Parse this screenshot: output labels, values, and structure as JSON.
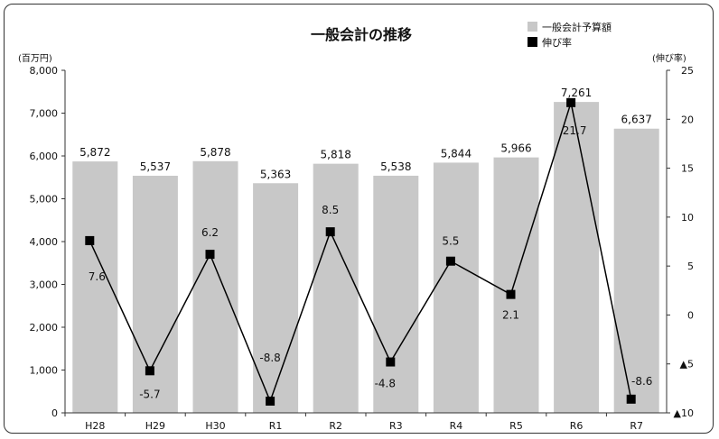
{
  "chart_data": {
    "type": "bar+line",
    "title": "一般会計の推移",
    "left_axis_unit": "(百万円)",
    "right_axis_unit": "(伸び率)",
    "categories": [
      "H28",
      "H29",
      "H30",
      "R1",
      "R2",
      "R3",
      "R4",
      "R5",
      "R6",
      "R7"
    ],
    "bar_series": {
      "name": "一般会計予算額",
      "values": [
        5872,
        5537,
        5878,
        5363,
        5818,
        5538,
        5844,
        5966,
        7261,
        6637
      ],
      "labels": [
        "5,872",
        "5,537",
        "5,878",
        "5,363",
        "5,818",
        "5,538",
        "5,844",
        "5,966",
        "7,261",
        "6,637"
      ],
      "color": "#c8c8c8"
    },
    "line_series": {
      "name": "伸び率",
      "values": [
        7.6,
        -5.7,
        6.2,
        -8.8,
        8.5,
        -4.8,
        5.5,
        2.1,
        21.7,
        -8.6
      ],
      "labels": [
        "7.6",
        "-5.7",
        "6.2",
        "-8.8",
        "8.5",
        "-4.8",
        "5.5",
        "2.1",
        "21.7",
        "-8.6"
      ],
      "color": "#000000"
    },
    "left_axis": {
      "range": [
        0,
        8000
      ],
      "ticks": [
        0,
        1000,
        2000,
        3000,
        4000,
        5000,
        6000,
        7000,
        8000
      ],
      "tick_labels": [
        "0",
        "1,000",
        "2,000",
        "3,000",
        "4,000",
        "5,000",
        "6,000",
        "7,000",
        "8,000"
      ]
    },
    "right_axis": {
      "range": [
        -10,
        25
      ],
      "ticks": [
        -10,
        -5,
        0,
        5,
        10,
        15,
        20,
        25
      ],
      "tick_labels": [
        "▲10",
        "▲5",
        "0",
        "5",
        "10",
        "15",
        "20",
        "25"
      ]
    },
    "legend": [
      "一般会計予算額",
      "伸び率"
    ],
    "legend_position": "top-right",
    "grid": false
  }
}
